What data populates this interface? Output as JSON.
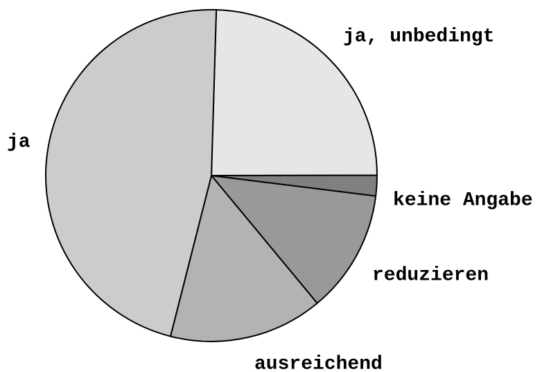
{
  "chart_data": {
    "type": "pie",
    "categories": [
      "ja, unbedingt",
      "keine Angabe",
      "reduzieren",
      "ausreichend",
      "ja"
    ],
    "values": [
      24.5,
      2,
      12,
      15,
      46.5
    ],
    "colors": [
      "#e6e6e6",
      "#808080",
      "#999999",
      "#b3b3b3",
      "#cccccc"
    ]
  }
}
